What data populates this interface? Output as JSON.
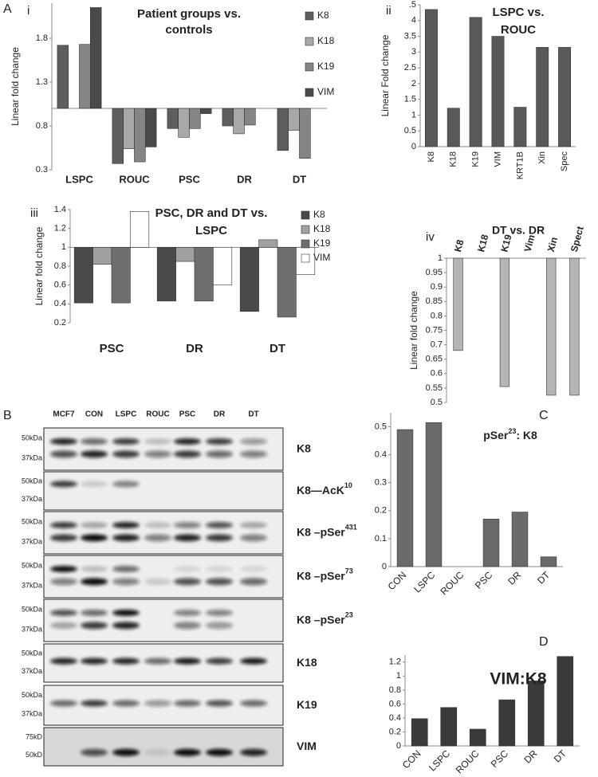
{
  "panel_letters": {
    "A": "A",
    "B": "B",
    "C": "C",
    "D": "D"
  },
  "chart_data": [
    {
      "type": "bar",
      "panel": "i",
      "title": [
        "Patient groups vs.",
        "controls"
      ],
      "y_label": "Linear fold change",
      "categories": [
        "LSPC",
        "ROUC",
        "PSC",
        "DR",
        "DT"
      ],
      "series": [
        {
          "name": "K8",
          "color": "#5e5e5e",
          "values": [
            1.72,
            0.37,
            0.77,
            0.8,
            0.52
          ]
        },
        {
          "name": "K18",
          "color": "#a8a8a8",
          "values": [
            null,
            0.54,
            0.67,
            0.71,
            0.75
          ]
        },
        {
          "name": "K19",
          "color": "#858585",
          "values": [
            1.73,
            0.39,
            0.77,
            0.81,
            0.43
          ]
        },
        {
          "name": "VIM",
          "color": "#4a4a4a",
          "values": [
            2.15,
            0.56,
            0.94,
            null,
            null
          ]
        }
      ],
      "bar_base": 1,
      "ylim": [
        0.3,
        2.2
      ],
      "yticks": [
        0.3,
        0.8,
        1.3,
        1.8
      ],
      "legend": "right"
    },
    {
      "type": "bar",
      "panel": "ii",
      "title": [
        "LSPC vs.",
        "ROUC"
      ],
      "y_label": "Linear Fold change",
      "categories": [
        "K8",
        "K18",
        "K19",
        "VIM",
        "KRT1B",
        "Xin",
        "Spec"
      ],
      "values": [
        4.35,
        1.22,
        4.1,
        3.5,
        1.25,
        3.15,
        3.15
      ],
      "color": "#595959",
      "ylim": [
        0,
        4.5
      ],
      "yticks": [
        0,
        0.5,
        1,
        1.5,
        2,
        2.5,
        3,
        3.5,
        4,
        {
          "value": 4.5,
          "label": ".5"
        }
      ]
    },
    {
      "type": "bar",
      "panel": "iii",
      "title": [
        "PSC, DR and DT vs.",
        "LSPC"
      ],
      "y_label": "Linear fold change",
      "categories": [
        "PSC",
        "DR",
        "DT"
      ],
      "series": [
        {
          "name": "K8",
          "color": "#4a4a4a",
          "values": [
            0.41,
            0.43,
            0.32
          ]
        },
        {
          "name": "K18",
          "color": "#a0a0a0",
          "values": [
            0.82,
            0.85,
            1.08
          ]
        },
        {
          "name": "K19",
          "color": "#6e6e6e",
          "values": [
            0.41,
            0.43,
            0.26
          ]
        },
        {
          "name": "VIM",
          "color": "#ffffff",
          "values": [
            1.38,
            0.6,
            0.71
          ]
        }
      ],
      "bar_base": 1,
      "ylim": [
        0.2,
        1.4
      ],
      "yticks": [
        0.2,
        0.4,
        0.6,
        0.8,
        1,
        1.2,
        1.4
      ],
      "legend": "top-right"
    },
    {
      "type": "bar",
      "panel": "iv",
      "title": [
        "DT vs. DR"
      ],
      "y_label": "Linear fold change",
      "categories": [
        "K8",
        "K18",
        "K19",
        "Vim",
        "Xin",
        "Spect"
      ],
      "values": [
        0.68,
        1,
        0.555,
        1,
        0.525,
        0.525
      ],
      "color": "#b5b5b5",
      "bar_base": 1,
      "ylim": [
        0.5,
        1
      ],
      "yticks": [
        0.5,
        0.55,
        0.6,
        0.65,
        0.7,
        0.75,
        0.8,
        0.85,
        0.9,
        0.95,
        1
      ]
    },
    {
      "type": "bar",
      "panel": "C",
      "title": "pSer",
      "title_sup": "23",
      "title_end": ": K8",
      "categories": [
        "CON",
        "LSPC",
        "ROUC",
        "PSC",
        "DR",
        "DT"
      ],
      "values": [
        0.49,
        0.515,
        0,
        0.17,
        0.195,
        0.035
      ],
      "color": "#6a6a6a",
      "ylim": [
        0,
        0.55
      ],
      "yticks": [
        0,
        0.1,
        0.2,
        0.3,
        0.4,
        0.5
      ]
    },
    {
      "type": "bar",
      "panel": "D",
      "title": [
        "VIM:K8"
      ],
      "categories": [
        "CON",
        "LSPC",
        "ROUC",
        "PSC",
        "DR",
        "DT"
      ],
      "values": [
        0.39,
        0.55,
        0.24,
        0.66,
        0.93,
        1.28
      ],
      "color": "#3a3a3a",
      "ylim": [
        0,
        1.3
      ],
      "yticks": [
        0,
        0.2,
        0.4,
        0.6,
        0.8,
        1,
        1.2
      ]
    }
  ],
  "blot": {
    "lanes": [
      "MCF7",
      "CON",
      "LSPC",
      "ROUC",
      "PSC",
      "DR",
      "DT"
    ],
    "rows": [
      {
        "label": "K8",
        "markers": [
          "50kDa",
          "37kDa"
        ]
      },
      {
        "label": "K8—AcK",
        "sup": "10",
        "markers": [
          "50kDa",
          "37kDa"
        ]
      },
      {
        "label": "K8 –pSer",
        "sup": "431",
        "markers": [
          "50kDa",
          "37kDa"
        ]
      },
      {
        "label": "K8 –pSer",
        "sup": "73",
        "markers": [
          "50kDa",
          "37kDa"
        ]
      },
      {
        "label": "K8 –pSer",
        "sup": "23",
        "markers": [
          "50kDa",
          "37kDa"
        ]
      },
      {
        "label": "K18",
        "markers": [
          "50kDa",
          "37kDa"
        ]
      },
      {
        "label": "K19",
        "markers": [
          "50kDa",
          "37kDa"
        ]
      },
      {
        "label": "VIM",
        "markers": [
          "75kD",
          "50kD"
        ]
      }
    ]
  }
}
